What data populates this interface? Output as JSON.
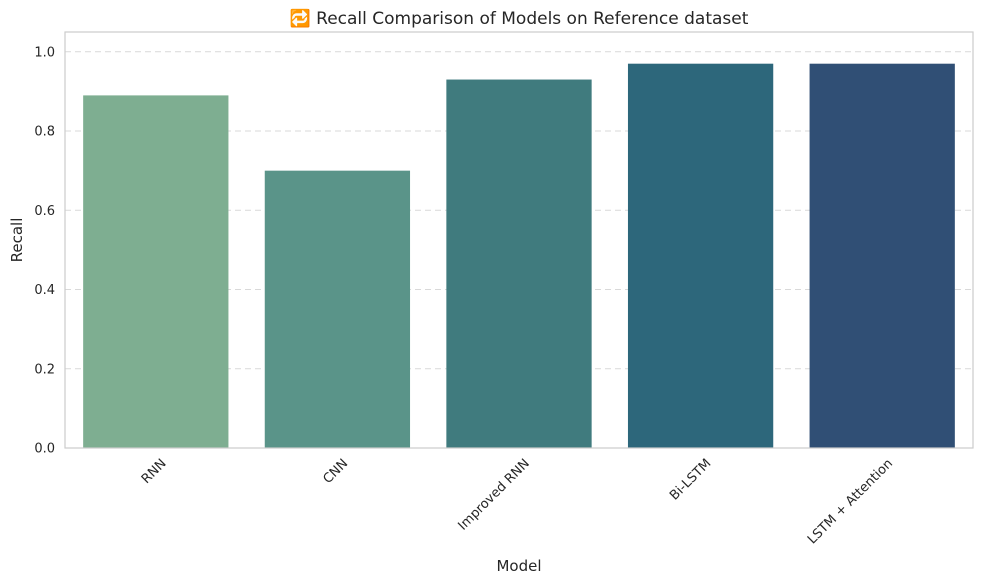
{
  "chart_data": {
    "type": "bar",
    "title": "🔁 Recall Comparison of Models on Reference dataset",
    "xlabel": "Model",
    "ylabel": "Recall",
    "categories": [
      "RNN",
      "CNN",
      "Improved RNN",
      "Bi-LSTM",
      "LSTM + Attention"
    ],
    "values": [
      0.89,
      0.7,
      0.93,
      0.97,
      0.97
    ],
    "bar_colors": [
      "#7eae91",
      "#5a9489",
      "#407b7e",
      "#2d677b",
      "#304f75"
    ],
    "ylim": [
      0,
      1.05
    ],
    "yticks": [
      "0.0",
      "0.2",
      "0.4",
      "0.6",
      "0.8",
      "1.0"
    ],
    "grid": "horizontal dashed",
    "legend": "none"
  }
}
